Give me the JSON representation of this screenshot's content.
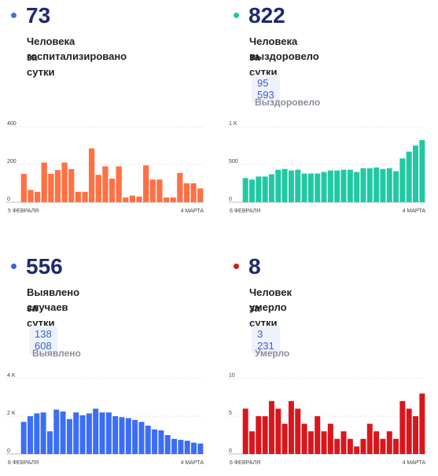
{
  "panels": [
    {
      "id": "hospitalized",
      "color": "#4a6fe3",
      "number": "73",
      "line1": "Человека госпитализировано",
      "line2": "за сутки",
      "total": "",
      "total_label": "",
      "chart_data": {
        "type": "bar",
        "color": "#ff7043",
        "yticks": [
          "400",
          "200",
          "0"
        ],
        "ylim": [
          0,
          400
        ],
        "x_start": "5 ФЕВРАЛЯ",
        "x_end": "4 МАРТА",
        "values": [
          150,
          65,
          55,
          210,
          150,
          170,
          210,
          175,
          55,
          55,
          285,
          145,
          190,
          125,
          190,
          25,
          35,
          30,
          195,
          120,
          120,
          25,
          25,
          155,
          100,
          100,
          73
        ]
      }
    },
    {
      "id": "recovered",
      "color": "#1ec8a0",
      "number": "822",
      "line1": "Человека выздоровело",
      "line2": "за сутки",
      "total": "95 593",
      "total_label": "Выздоровело",
      "chart_data": {
        "type": "bar",
        "color": "#20c9a3",
        "yticks": [
          "1 K",
          "500",
          "0"
        ],
        "ylim": [
          0,
          1000
        ],
        "x_start": "6 ФЕВРАЛЯ",
        "x_end": "4 МАРТА",
        "values": [
          320,
          300,
          340,
          340,
          370,
          430,
          440,
          420,
          430,
          380,
          380,
          380,
          400,
          420,
          420,
          430,
          430,
          400,
          450,
          450,
          460,
          440,
          450,
          410,
          580,
          670,
          750,
          822
        ]
      }
    },
    {
      "id": "detected",
      "color": "#3a62e0",
      "number": "556",
      "line1": "Выявлено случаев",
      "line2": "за сутки",
      "total": "138 608",
      "total_label": "Выявлено",
      "chart_data": {
        "type": "bar",
        "color": "#3b6ef5",
        "yticks": [
          "4 K",
          "2 K",
          "0"
        ],
        "ylim": [
          0,
          4000
        ],
        "x_start": "6 ФЕВРАЛЯ",
        "x_end": "4 МАРТА",
        "values": [
          1700,
          2000,
          2150,
          2200,
          1200,
          2350,
          2250,
          1850,
          2200,
          2050,
          2150,
          2400,
          2200,
          2200,
          2000,
          1950,
          1900,
          1800,
          1700,
          1500,
          1300,
          1250,
          1000,
          800,
          750,
          700,
          600,
          556
        ]
      }
    },
    {
      "id": "deaths",
      "color": "#cc1a1a",
      "number": "8",
      "line1": "Человек умерло",
      "line2": "за сутки",
      "total": "3 231",
      "total_label": "Умерло",
      "chart_data": {
        "type": "bar",
        "color": "#d8161c",
        "yticks": [
          "10",
          "5",
          "0"
        ],
        "ylim": [
          0,
          10
        ],
        "x_start": "6 ФЕВРАЛЯ",
        "x_end": "4 МАРТА",
        "values": [
          6,
          3,
          5,
          5,
          7,
          6,
          4,
          7,
          6,
          4,
          3,
          5,
          3,
          4,
          2,
          3,
          2,
          1,
          2,
          4,
          3,
          2,
          3,
          2,
          7,
          6,
          5,
          8
        ]
      }
    }
  ]
}
